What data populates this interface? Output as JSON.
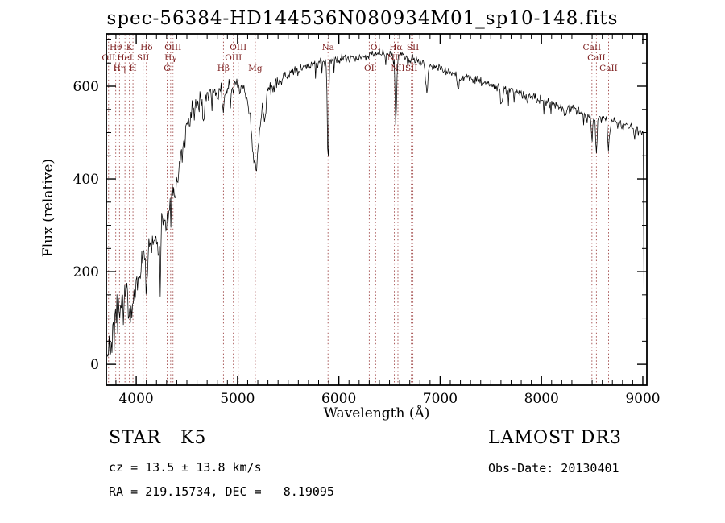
{
  "title": "spec-56384-HD144536N080934M01_sp10-148.fits",
  "annotations": {
    "class_label": "STAR   K5",
    "survey": "LAMOST DR3",
    "cz": "cz = 13.5 ± 13.8 km/s",
    "obs_date": "Obs-Date: 20130401",
    "ra_dec": "RA = 219.15734, DEC =   8.19095"
  },
  "chart_data": {
    "type": "line",
    "title": "spec-56384-HD144536N080934M01_sp10-148.fits",
    "xlabel": "Wavelength (Å)",
    "ylabel": "Flux (relative)",
    "xlim": [
      3705,
      9040
    ],
    "ylim": [
      -45,
      713
    ],
    "x_ticks": [
      4000,
      5000,
      6000,
      7000,
      8000,
      9000
    ],
    "y_ticks": [
      0,
      200,
      400,
      600
    ],
    "x_minor_step": 100,
    "y_minor_step": 50,
    "grid": false,
    "legend": "none",
    "trace_color": "#000000",
    "line_color": "#a04848",
    "label_color": "#7d1f1f",
    "sampling": {
      "start": 3712,
      "end": 9012,
      "step": 7
    },
    "series": [
      {
        "name": "spectrum",
        "continuum_anchors": [
          [
            3712,
            5
          ],
          [
            3740,
            45
          ],
          [
            3770,
            80
          ],
          [
            3800,
            105
          ],
          [
            3840,
            130
          ],
          [
            3880,
            150
          ],
          [
            3920,
            160
          ],
          [
            3960,
            165
          ],
          [
            4000,
            180
          ],
          [
            4060,
            205
          ],
          [
            4120,
            235
          ],
          [
            4180,
            265
          ],
          [
            4240,
            295
          ],
          [
            4300,
            330
          ],
          [
            4360,
            375
          ],
          [
            4420,
            430
          ],
          [
            4480,
            490
          ],
          [
            4540,
            535
          ],
          [
            4600,
            560
          ],
          [
            4680,
            572
          ],
          [
            4760,
            582
          ],
          [
            4840,
            590
          ],
          [
            4920,
            597
          ],
          [
            5000,
            600
          ],
          [
            5060,
            592
          ],
          [
            5120,
            575
          ],
          [
            5180,
            550
          ],
          [
            5240,
            570
          ],
          [
            5300,
            590
          ],
          [
            5380,
            608
          ],
          [
            5460,
            620
          ],
          [
            5560,
            630
          ],
          [
            5680,
            640
          ],
          [
            5800,
            648
          ],
          [
            5920,
            654
          ],
          [
            6040,
            659
          ],
          [
            6160,
            663
          ],
          [
            6280,
            667
          ],
          [
            6400,
            670
          ],
          [
            6500,
            669
          ],
          [
            6600,
            665
          ],
          [
            6700,
            659
          ],
          [
            6800,
            652
          ],
          [
            6900,
            644
          ],
          [
            7000,
            637
          ],
          [
            7150,
            627
          ],
          [
            7300,
            617
          ],
          [
            7450,
            607
          ],
          [
            7600,
            597
          ],
          [
            7750,
            586
          ],
          [
            7900,
            576
          ],
          [
            8050,
            566
          ],
          [
            8200,
            556
          ],
          [
            8350,
            546
          ],
          [
            8500,
            536
          ],
          [
            8650,
            526
          ],
          [
            8800,
            516
          ],
          [
            8950,
            505
          ],
          [
            9000,
            500
          ],
          [
            9006,
            495
          ],
          [
            9009,
            300
          ],
          [
            9012,
            85
          ]
        ]
      }
    ],
    "absorption_features": [
      [
        3934,
        55,
        10
      ],
      [
        3969,
        50,
        10
      ],
      [
        4102,
        50,
        9
      ],
      [
        4227,
        60,
        8
      ],
      [
        4305,
        40,
        14
      ],
      [
        4340,
        35,
        9
      ],
      [
        4383,
        45,
        8
      ],
      [
        4668,
        45,
        8
      ],
      [
        4861,
        45,
        9
      ],
      [
        5175,
        130,
        35
      ],
      [
        5270,
        40,
        12
      ],
      [
        5893,
        225,
        7
      ],
      [
        6563,
        150,
        7
      ],
      [
        6867,
        60,
        10
      ],
      [
        7180,
        30,
        12
      ],
      [
        7605,
        35,
        12
      ],
      [
        8230,
        20,
        10
      ],
      [
        8498,
        55,
        7
      ],
      [
        8542,
        75,
        8
      ],
      [
        8662,
        65,
        8
      ]
    ],
    "noise_anchors": [
      [
        3712,
        28
      ],
      [
        3900,
        30
      ],
      [
        4100,
        32
      ],
      [
        4300,
        30
      ],
      [
        4500,
        24
      ],
      [
        4700,
        16
      ],
      [
        4900,
        13
      ],
      [
        5100,
        13
      ],
      [
        5300,
        12
      ],
      [
        5500,
        10
      ],
      [
        5800,
        9
      ],
      [
        6100,
        8
      ],
      [
        6400,
        8
      ],
      [
        6700,
        7
      ],
      [
        7000,
        7
      ],
      [
        7400,
        7
      ],
      [
        7800,
        8
      ],
      [
        8200,
        8
      ],
      [
        8600,
        8
      ],
      [
        9000,
        8
      ]
    ],
    "spectral_lines": [
      {
        "wavelength": 3727,
        "label": "OII",
        "row": 2
      },
      {
        "wavelength": 3798,
        "label": "Hθ",
        "row": 1
      },
      {
        "wavelength": 3835,
        "label": "Hη",
        "row": 3
      },
      {
        "wavelength": 3889,
        "label": "HeI",
        "row": 2
      },
      {
        "wavelength": 3933,
        "label": "K",
        "row": 1
      },
      {
        "wavelength": 3968,
        "label": "H",
        "row": 3
      },
      {
        "wavelength": 4068,
        "label": "SII",
        "row": 2
      },
      {
        "wavelength": 4101,
        "label": "Hδ",
        "row": 1
      },
      {
        "wavelength": 4305,
        "label": "G",
        "row": 3
      },
      {
        "wavelength": 4340,
        "label": "Hγ",
        "row": 2
      },
      {
        "wavelength": 4363,
        "label": "OIII",
        "row": 1
      },
      {
        "wavelength": 4861,
        "label": "Hβ",
        "row": 3
      },
      {
        "wavelength": 4959,
        "label": "OIII",
        "row": 2
      },
      {
        "wavelength": 5007,
        "label": "OIII",
        "row": 1
      },
      {
        "wavelength": 5175,
        "label": "Mg",
        "row": 3
      },
      {
        "wavelength": 5893,
        "label": "Na",
        "row": 1
      },
      {
        "wavelength": 6300,
        "label": "OI",
        "row": 3
      },
      {
        "wavelength": 6363,
        "label": "OI",
        "row": 1
      },
      {
        "wavelength": 6548,
        "label": "NII",
        "row": 2
      },
      {
        "wavelength": 6563,
        "label": "Hα",
        "row": 1
      },
      {
        "wavelength": 6583,
        "label": "NII",
        "row": 3
      },
      {
        "wavelength": 6716,
        "label": "SII",
        "row": 3
      },
      {
        "wavelength": 6731,
        "label": "SII",
        "row": 1
      },
      {
        "wavelength": 8498,
        "label": "CaII",
        "row": 1
      },
      {
        "wavelength": 8542,
        "label": "CaII",
        "row": 2
      },
      {
        "wavelength": 8662,
        "label": "CaII",
        "row": 3
      }
    ]
  }
}
